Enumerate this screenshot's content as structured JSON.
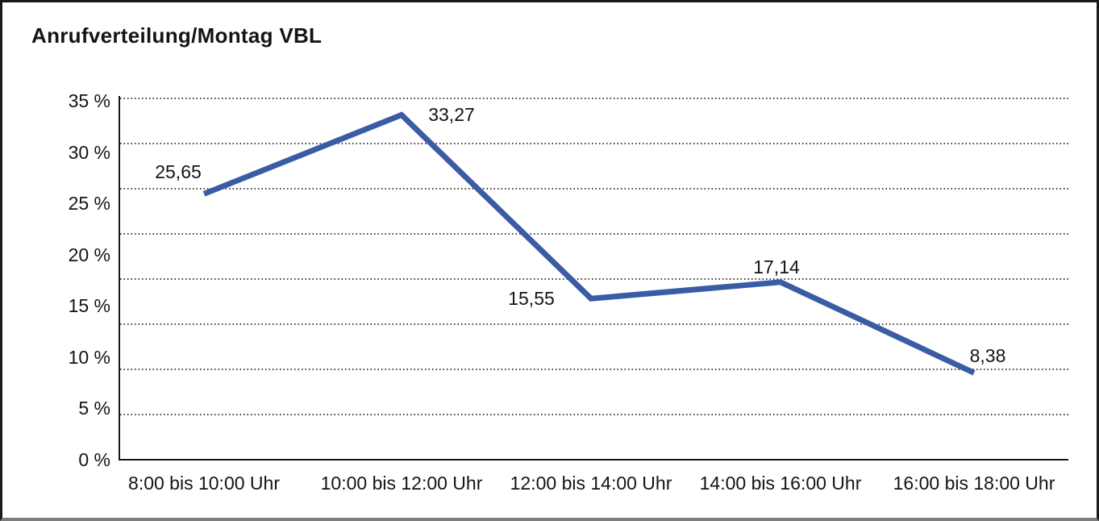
{
  "chart_data": {
    "type": "line",
    "title": "Anrufverteilung/Montag VBL",
    "categories": [
      "8:00 bis 10:00 Uhr",
      "10:00 bis 12:00 Uhr",
      "12:00 bis 14:00 Uhr",
      "14:00 bis 16:00 Uhr",
      "16:00 bis 18:00 Uhr"
    ],
    "values": [
      25.65,
      33.27,
      15.55,
      17.14,
      8.38
    ],
    "point_labels": [
      "25,65",
      "33,27",
      "15,55",
      "17,14",
      "8,38"
    ],
    "y_tick_labels": [
      "35 %",
      "30 %",
      "25 %",
      "20 %",
      "15 %",
      "10 %",
      "5 %",
      "0 %"
    ],
    "y_tick_values": [
      35,
      30,
      25,
      20,
      15,
      10,
      5,
      0
    ],
    "ylim": [
      0,
      35
    ],
    "xlabel": "",
    "ylabel": "",
    "grid": "horizontal-dotted",
    "legend": "none",
    "line_color": "#3A5CA5",
    "text_color": "#141414"
  }
}
